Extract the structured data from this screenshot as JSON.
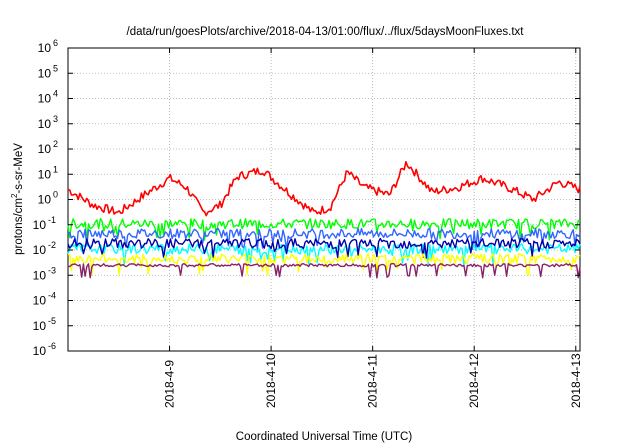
{
  "chart_data": {
    "type": "line",
    "title": "/data/run/goesPlots/archive/2018-04-13/01:00/flux/../flux/5daysMoonFluxes.txt",
    "xlabel": "Coordinated Universal Time (UTC)",
    "ylabel": "protons/cm2-s-sr-MeV",
    "ylabel_main": "protons/cm",
    "ylabel_sup": "2",
    "ylabel_rest": "-s-sr-MeV",
    "x_range": [
      "2018-04-08 00:00",
      "2018-04-13 01:00"
    ],
    "x_ticks": [
      "2018-4-9",
      "2018-4-10",
      "2018-4-11",
      "2018-4-12",
      "2018-4-13"
    ],
    "y_scale": "log",
    "y_range": [
      1e-06,
      1000000.0
    ],
    "y_ticks": [
      {
        "base": "10",
        "exp": "-6"
      },
      {
        "base": "10",
        "exp": "-5"
      },
      {
        "base": "10",
        "exp": "-4"
      },
      {
        "base": "10",
        "exp": "-3"
      },
      {
        "base": "10",
        "exp": "-2"
      },
      {
        "base": "10",
        "exp": "-1"
      },
      {
        "base": "10",
        "exp": "0"
      },
      {
        "base": "10",
        "exp": "1"
      },
      {
        "base": "10",
        "exp": "2"
      },
      {
        "base": "10",
        "exp": "3"
      },
      {
        "base": "10",
        "exp": "4"
      },
      {
        "base": "10",
        "exp": "5"
      },
      {
        "base": "10",
        "exp": "6"
      }
    ],
    "grid": true,
    "series": [
      {
        "color": "#ff0000",
        "values_approx": [
          {
            "x": "2018-04-08 00:00",
            "y": 2.5
          },
          {
            "x": "2018-04-08 06:00",
            "y": 0.6
          },
          {
            "x": "2018-04-08 12:00",
            "y": 0.3
          },
          {
            "x": "2018-04-08 18:00",
            "y": 1.5
          },
          {
            "x": "2018-04-09 00:00",
            "y": 7.0
          },
          {
            "x": "2018-04-09 04:00",
            "y": 3.0
          },
          {
            "x": "2018-04-09 08:00",
            "y": 0.3
          },
          {
            "x": "2018-04-09 12:00",
            "y": 0.6
          },
          {
            "x": "2018-04-09 16:00",
            "y": 8.0
          },
          {
            "x": "2018-04-09 22:00",
            "y": 15.0
          },
          {
            "x": "2018-04-10 04:00",
            "y": 2.0
          },
          {
            "x": "2018-04-10 10:00",
            "y": 0.3
          },
          {
            "x": "2018-04-10 14:00",
            "y": 0.5
          },
          {
            "x": "2018-04-10 18:00",
            "y": 12.0
          },
          {
            "x": "2018-04-10 22:00",
            "y": 3.0
          },
          {
            "x": "2018-04-11 04:00",
            "y": 1.5
          },
          {
            "x": "2018-04-11 08:00",
            "y": 30.0
          },
          {
            "x": "2018-04-11 14:00",
            "y": 2.0
          },
          {
            "x": "2018-04-11 20:00",
            "y": 3.0
          },
          {
            "x": "2018-04-12 02:00",
            "y": 7.0
          },
          {
            "x": "2018-04-12 08:00",
            "y": 3.0
          },
          {
            "x": "2018-04-12 14:00",
            "y": 1.0
          },
          {
            "x": "2018-04-12 20:00",
            "y": 5.0
          },
          {
            "x": "2018-04-13 01:00",
            "y": 2.5
          }
        ],
        "approx_level": 2.0
      },
      {
        "color": "#00ff00",
        "approx_level": 0.11
      },
      {
        "color": "#3366ff",
        "approx_level": 0.045
      },
      {
        "color": "#00ffff",
        "approx_level": 0.011
      },
      {
        "color": "#0000aa",
        "approx_level": 0.018
      },
      {
        "color": "#ffff00",
        "approx_level": 0.0045
      },
      {
        "color": "#882266",
        "approx_level": 0.0025
      }
    ]
  }
}
